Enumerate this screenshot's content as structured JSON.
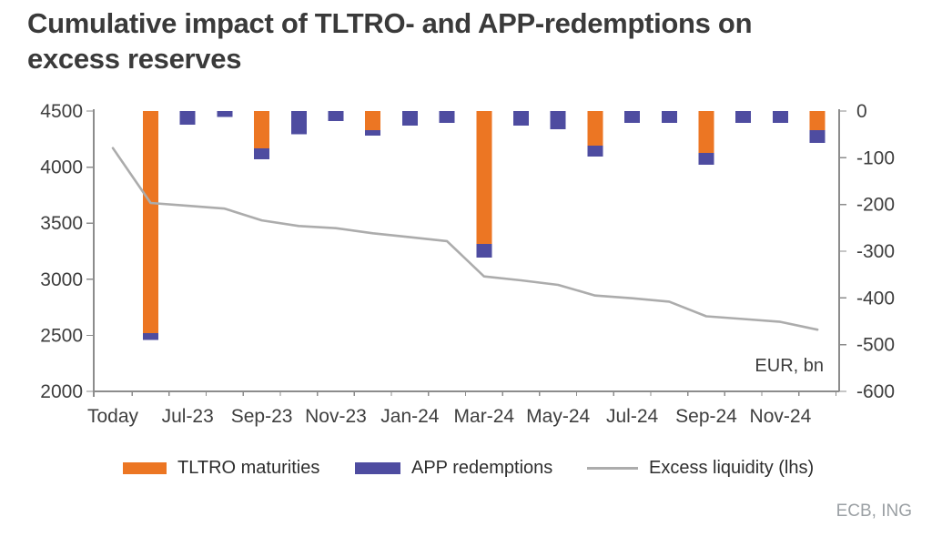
{
  "title": "Cumulative impact of TLTRO- and APP-redemptions on\nexcess reserves",
  "unit_label": "EUR, bn",
  "source": "ECB, ING",
  "colors": {
    "tltro": "#EC7623",
    "app": "#4E4CA0",
    "line": "#ACACAC",
    "axis": "#8C8C8C",
    "tick_text": "#3E3E3E",
    "title_text": "#3A3A3A",
    "source_text": "#9BA0A4",
    "background": "#FFFFFF"
  },
  "chart_data": {
    "type": "bar+line",
    "description": "Stacked monthly bars (right axis, EUR bn, negative = liquidity drain) plus cumulative excess liquidity line (left axis, EUR bn)",
    "unit": "EUR, bn",
    "grid": false,
    "legend_position": "bottom",
    "axes": {
      "left": {
        "min": 2000,
        "max": 4500,
        "step": 500,
        "ticks": [
          4500,
          4000,
          3500,
          3000,
          2500,
          2000
        ]
      },
      "right": {
        "min": -600,
        "max": 0,
        "step": 100,
        "ticks": [
          0,
          -100,
          -200,
          -300,
          -400,
          -500,
          -600
        ]
      }
    },
    "x_tick_labels": [
      "Today",
      "Jul-23",
      "Sep-23",
      "Nov-23",
      "Jan-24",
      "Mar-24",
      "May-24",
      "Jul-24",
      "Sep-24",
      "Nov-24"
    ],
    "months": [
      "Jun-23",
      "Jul-23",
      "Aug-23",
      "Sep-23",
      "Oct-23",
      "Nov-23",
      "Dec-23",
      "Jan-24",
      "Feb-24",
      "Mar-24",
      "Apr-24",
      "May-24",
      "Jun-24",
      "Jul-24",
      "Aug-24",
      "Sep-24",
      "Oct-24",
      "Nov-24",
      "Dec-24"
    ],
    "series": [
      {
        "name": "TLTRO maturities",
        "type": "bar",
        "axis": "right",
        "color_key": "tltro",
        "values": [
          -475,
          0,
          0,
          -80,
          0,
          0,
          -41,
          0,
          0,
          -284,
          0,
          0,
          -74,
          0,
          0,
          -90,
          0,
          0,
          -41
        ]
      },
      {
        "name": "APP redemptions",
        "type": "bar",
        "axis": "right",
        "color_key": "app",
        "values": [
          -15,
          -29,
          -13,
          -23,
          -50,
          -21,
          -12,
          -31,
          -25,
          -30,
          -31,
          -39,
          -23,
          -25,
          -25,
          -25,
          -25,
          -25,
          -27
        ]
      },
      {
        "name": "Excess liquidity (lhs)",
        "type": "line",
        "axis": "left",
        "color_key": "line",
        "x": [
          "Today",
          "Jun-23",
          "Jul-23",
          "Aug-23",
          "Sep-23",
          "Oct-23",
          "Nov-23",
          "Dec-23",
          "Jan-24",
          "Feb-24",
          "Mar-24",
          "Apr-24",
          "May-24",
          "Jun-24",
          "Jul-24",
          "Aug-24",
          "Sep-24",
          "Oct-24",
          "Nov-24",
          "Dec-24"
        ],
        "values": [
          4170,
          3680,
          3655,
          3630,
          3525,
          3475,
          3455,
          3410,
          3375,
          3340,
          3025,
          2990,
          2950,
          2855,
          2830,
          2800,
          2670,
          2645,
          2620,
          2550
        ]
      }
    ]
  }
}
